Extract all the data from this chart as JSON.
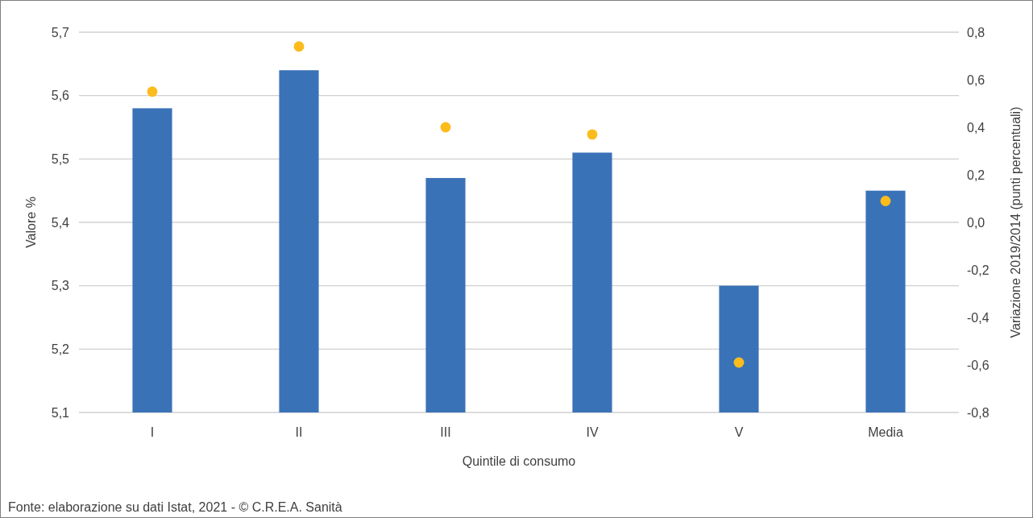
{
  "chart_data": {
    "type": "bar",
    "xlabel": "Quintile di consumo",
    "ylabel": "Valore %",
    "y2label": "Variazione 2019/2014 (punti percentuali)",
    "categories": [
      "I",
      "II",
      "III",
      "IV",
      "V",
      "Media"
    ],
    "series": [
      {
        "color": "#3a72b8",
        "values": [
          5.58,
          5.64,
          5.47,
          5.51,
          5.3,
          5.45
        ]
      },
      {
        "type": "scatter",
        "axis": "y2",
        "color": "#fbbc1c",
        "values": [
          0.55,
          0.74,
          0.4,
          0.37,
          -0.59,
          0.09
        ]
      }
    ],
    "ylim": [
      5.1,
      5.7
    ],
    "yticks": [
      {
        "value": 5.1,
        "label": "5,1"
      },
      {
        "value": 5.2,
        "label": "5,2"
      },
      {
        "value": 5.3,
        "label": "5,3"
      },
      {
        "value": 5.4,
        "label": "5,4"
      },
      {
        "value": 5.5,
        "label": "5,5"
      },
      {
        "value": 5.6,
        "label": "5,6"
      },
      {
        "value": 5.7,
        "label": "5,7"
      }
    ],
    "y2lim": [
      -0.8,
      0.8
    ],
    "y2ticks": [
      {
        "value": -0.8,
        "label": "-0,8"
      },
      {
        "value": -0.6,
        "label": "-0,6"
      },
      {
        "value": -0.4,
        "label": "-0,4"
      },
      {
        "value": -0.2,
        "label": "-0,2"
      },
      {
        "value": 0,
        "label": "0,0"
      },
      {
        "value": 0.2,
        "label": "0,2"
      },
      {
        "value": 0.4,
        "label": "0,4"
      },
      {
        "value": 0.6,
        "label": "0,6"
      },
      {
        "value": 0.8,
        "label": "0,8"
      }
    ],
    "grid": "y",
    "marker": "circle",
    "annotations": [
      "Fonte: elaborazione su dati Istat, 2021 - © C.R.E.A. Sanità"
    ]
  }
}
